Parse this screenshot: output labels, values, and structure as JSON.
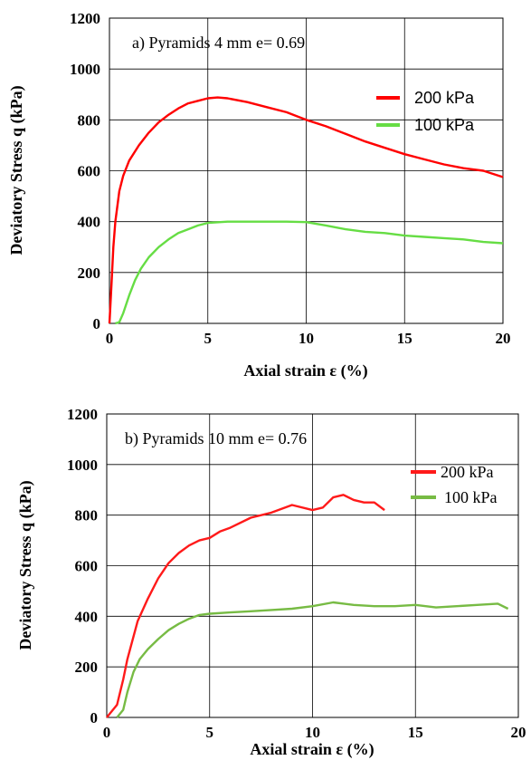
{
  "chart_data": [
    {
      "type": "line",
      "title": "a) Pyramids  4 mm e= 0.69",
      "xlabel": "Axial strain ε (%)",
      "ylabel": "Deviatory Stress q (kPa)",
      "xlim": [
        0,
        20
      ],
      "ylim": [
        0,
        1200
      ],
      "xticks": [
        "0",
        "5",
        "10",
        "15",
        "20"
      ],
      "yticks": [
        "0",
        "200",
        "400",
        "600",
        "800",
        "1000",
        "1200"
      ],
      "grid": true,
      "legend_position": "right",
      "series": [
        {
          "name": "200 kPa",
          "color": "#ff0000",
          "x": [
            0,
            0.1,
            0.2,
            0.3,
            0.5,
            0.7,
            1,
            1.5,
            2,
            2.5,
            3,
            3.5,
            4,
            4.5,
            5,
            5.5,
            6,
            7,
            8,
            9,
            10,
            11,
            12,
            13,
            14,
            15,
            16,
            17,
            18,
            19,
            20
          ],
          "y": [
            0,
            150,
            300,
            400,
            520,
            580,
            640,
            700,
            750,
            790,
            820,
            845,
            865,
            875,
            885,
            888,
            885,
            870,
            850,
            830,
            800,
            775,
            745,
            715,
            690,
            665,
            645,
            625,
            610,
            600,
            575
          ]
        },
        {
          "name": "100 kPa",
          "color": "#66dd44",
          "x": [
            0.3,
            0.5,
            0.7,
            1,
            1.3,
            1.6,
            2,
            2.5,
            3,
            3.5,
            4,
            4.5,
            5,
            6,
            7,
            8,
            9,
            10,
            11,
            12,
            13,
            14,
            15,
            16,
            17,
            18,
            19,
            20
          ],
          "y": [
            0,
            5,
            40,
            110,
            170,
            215,
            260,
            300,
            330,
            355,
            370,
            385,
            395,
            400,
            400,
            400,
            400,
            398,
            385,
            370,
            360,
            355,
            345,
            340,
            335,
            330,
            320,
            315
          ]
        }
      ]
    },
    {
      "type": "line",
      "title": "b) Pyramids  10 mm e= 0.76",
      "xlabel": "Axial  strain  ε (%)",
      "ylabel": "Deviatory Stress q (kPa)",
      "xlim": [
        0,
        20
      ],
      "ylim": [
        0,
        1200
      ],
      "xticks": [
        "0",
        "5",
        "10",
        "15",
        "20"
      ],
      "yticks": [
        "0",
        "200",
        "400",
        "600",
        "800",
        "1000",
        "1200"
      ],
      "grid": true,
      "legend_position": "right",
      "series": [
        {
          "name": "200 kPa",
          "color": "#ff1a1a",
          "x": [
            0,
            0.5,
            0.8,
            1,
            1.5,
            2,
            2.5,
            3,
            3.5,
            4,
            4.5,
            5,
            5.5,
            6,
            7,
            8,
            9,
            10,
            10.5,
            11,
            11.5,
            12,
            12.5,
            13,
            13.5
          ],
          "y": [
            0,
            50,
            150,
            230,
            380,
            470,
            550,
            610,
            650,
            680,
            700,
            710,
            735,
            750,
            790,
            810,
            840,
            820,
            830,
            870,
            880,
            860,
            850,
            850,
            820
          ]
        },
        {
          "name": "100 kPa",
          "color": "#77bb44",
          "x": [
            0.5,
            0.8,
            1,
            1.3,
            1.6,
            2,
            2.5,
            3,
            3.5,
            4,
            4.5,
            5,
            6,
            7,
            8,
            9,
            10,
            11,
            12,
            13,
            14,
            15,
            16,
            17,
            18,
            19,
            19.5
          ],
          "y": [
            0,
            30,
            100,
            180,
            230,
            270,
            310,
            345,
            370,
            390,
            405,
            410,
            415,
            420,
            425,
            430,
            440,
            455,
            445,
            440,
            440,
            445,
            435,
            440,
            445,
            450,
            430
          ]
        }
      ]
    }
  ]
}
